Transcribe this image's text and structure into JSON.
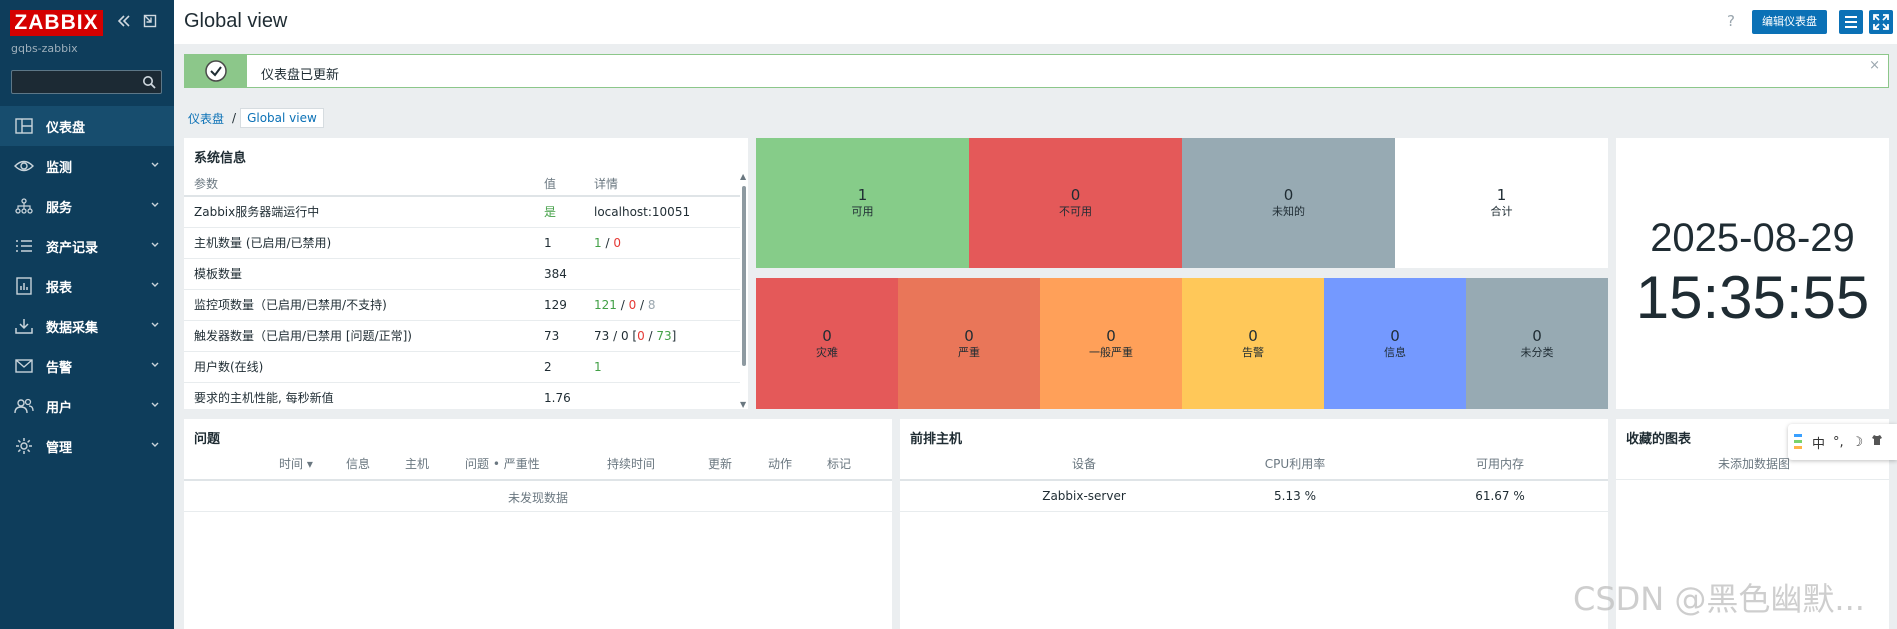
{
  "sidebar": {
    "logo": "ZABBIX",
    "server_name": "gqbs-zabbix",
    "search_placeholder": "",
    "items": [
      {
        "label": "仪表盘",
        "icon": "dashboard-icon"
      },
      {
        "label": "监测",
        "icon": "eye-icon"
      },
      {
        "label": "服务",
        "icon": "services-icon"
      },
      {
        "label": "资产记录",
        "icon": "list-icon"
      },
      {
        "label": "报表",
        "icon": "report-icon"
      },
      {
        "label": "数据采集",
        "icon": "download-icon"
      },
      {
        "label": "告警",
        "icon": "mail-icon"
      },
      {
        "label": "用户",
        "icon": "users-icon"
      },
      {
        "label": "管理",
        "icon": "gear-icon"
      }
    ]
  },
  "header": {
    "title": "Global view",
    "help": "?",
    "edit_button": "编辑仪表盘"
  },
  "message": {
    "text": "仪表盘已更新",
    "close": "×"
  },
  "breadcrumb": {
    "root": "仪表盘",
    "separator": "/",
    "current": "Global view"
  },
  "system_info": {
    "title": "系统信息",
    "columns": [
      "参数",
      "值",
      "详情"
    ],
    "rows": [
      {
        "param": "Zabbix服务器端运行中",
        "value": "是",
        "detail": "localhost:10051"
      },
      {
        "param": "主机数量 (已启用/已禁用)",
        "value": "1",
        "d1": "1",
        "s1": " / ",
        "d2": "0"
      },
      {
        "param": "模板数量",
        "value": "384",
        "detail": ""
      },
      {
        "param": "监控项数量（已启用/已禁用/不支持)",
        "value": "129",
        "d1": "121",
        "s1": " / ",
        "d2": "0",
        "s2": " / ",
        "d3": "8"
      },
      {
        "param": "触发器数量（已启用/已禁用 [问题/正常])",
        "value": "73",
        "p0": "73 / 0 [",
        "d1": "0",
        "s1": " / ",
        "d2": "73",
        "s2": "]"
      },
      {
        "param": "用户数(在线)",
        "value": "2",
        "detail": "1"
      },
      {
        "param": "要求的主机性能, 每秒新值",
        "value": "1.76",
        "detail": ""
      }
    ]
  },
  "host_availability": {
    "cells": [
      {
        "count": "1",
        "label": "可用",
        "color": "#86cc89"
      },
      {
        "count": "0",
        "label": "不可用",
        "color": "#e45959"
      },
      {
        "count": "0",
        "label": "未知的",
        "color": "#97aab3"
      },
      {
        "count": "1",
        "label": "合计",
        "color": "#ffffff"
      }
    ]
  },
  "severity": {
    "cells": [
      {
        "count": "0",
        "label": "灾难",
        "color": "#e45959"
      },
      {
        "count": "0",
        "label": "严重",
        "color": "#e97659"
      },
      {
        "count": "0",
        "label": "一般严重",
        "color": "#ffa059"
      },
      {
        "count": "0",
        "label": "告警",
        "color": "#ffc859"
      },
      {
        "count": "0",
        "label": "信息",
        "color": "#7499ff"
      },
      {
        "count": "0",
        "label": "未分类",
        "color": "#97aab3"
      }
    ]
  },
  "clock": {
    "date": "2025-08-29",
    "time": "15:35:55"
  },
  "problems": {
    "title": "问题",
    "columns": [
      "时间",
      "信息",
      "主机",
      "问题 • 严重性",
      "持续时间",
      "更新",
      "动作",
      "标记"
    ],
    "empty": "未发现数据"
  },
  "top_hosts": {
    "title": "前排主机",
    "columns": [
      "设备",
      "CPU利用率",
      "可用内存"
    ],
    "rows": [
      {
        "host": "Zabbix-server",
        "cpu": "5.13 %",
        "mem": "61.67 %"
      }
    ]
  },
  "favourite_graphs": {
    "title": "收藏的图表",
    "empty": "未添加数据图"
  },
  "ime": {
    "lang": "中",
    "punct": "°,",
    "moon": "☽"
  },
  "watermark": "CSDN @黑色幽默..."
}
